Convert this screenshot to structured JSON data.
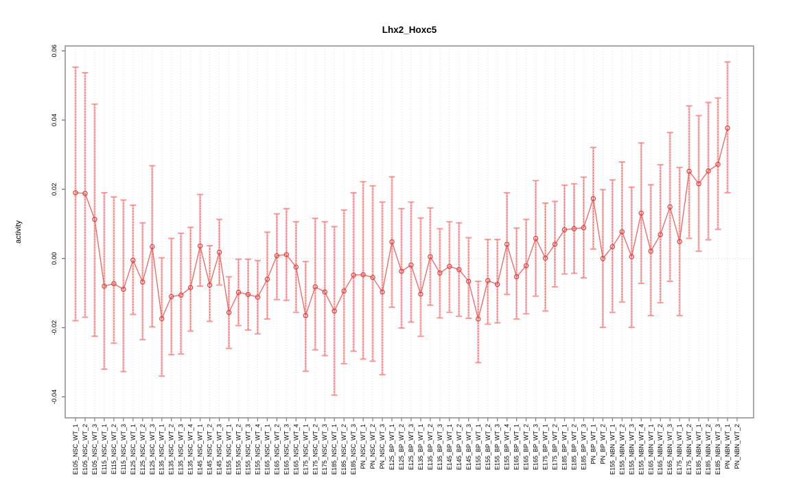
{
  "chart_data": {
    "type": "scatter",
    "subtype": "points-with-error-bars",
    "title": "Lhx2_Hoxc5",
    "xlabel": "",
    "ylabel": "activity",
    "ylim": [
      -0.047,
      0.062
    ],
    "yticks": [
      0.06,
      0.04,
      0.02,
      0.0,
      -0.02,
      -0.04
    ],
    "ytick_labels": [
      "0.06",
      "0.04",
      "0.02",
      "0.00",
      "-0.02",
      "-0.04"
    ],
    "grid": "vertical dotted gridline at every category; dotted horizontal line at y=0",
    "legend": "none",
    "style": {
      "point_color": "#e03c3c",
      "line_color": "#f26060",
      "errorbar_color": "#f78e8e",
      "errorbar_core_color": "#e64545",
      "grid_color": "#dedede",
      "zero_line_color": "#cccccc",
      "box_color": "#8c8c8c",
      "tick_color": "#7a7a7a",
      "text_color": "#000000"
    },
    "series": [
      {
        "name": "activity",
        "points": [
          {
            "label": "E105_NSC_WT_1",
            "value": 0.019,
            "lo": -0.018,
            "hi": 0.0553
          },
          {
            "label": "E105_NSC_WT_2",
            "value": 0.0188,
            "lo": -0.017,
            "hi": 0.0537
          },
          {
            "label": "E105_NSC_WT_3",
            "value": 0.0113,
            "lo": -0.0225,
            "hi": 0.0446
          },
          {
            "label": "E115_NSC_WT_1",
            "value": -0.008,
            "lo": -0.032,
            "hi": 0.019
          },
          {
            "label": "E115_NSC_WT_2",
            "value": -0.0073,
            "lo": -0.0245,
            "hi": 0.0178
          },
          {
            "label": "E115_NSC_WT_3",
            "value": -0.0089,
            "lo": -0.0327,
            "hi": 0.0169
          },
          {
            "label": "E125_NSC_WT_1",
            "value": -0.0005,
            "lo": -0.0162,
            "hi": 0.0154
          },
          {
            "label": "E125_NSC_WT_2",
            "value": -0.0068,
            "lo": -0.0235,
            "hi": 0.0103
          },
          {
            "label": "E125_NSC_WT_3",
            "value": 0.0034,
            "lo": -0.0198,
            "hi": 0.0268
          },
          {
            "label": "E135_NSC_WT_1",
            "value": -0.0174,
            "lo": -0.034,
            "hi": 0.0002
          },
          {
            "label": "E135_NSC_WT_2",
            "value": -0.011,
            "lo": -0.0278,
            "hi": 0.0058
          },
          {
            "label": "E135_NSC_WT_3",
            "value": -0.0106,
            "lo": -0.0276,
            "hi": 0.0073
          },
          {
            "label": "E135_NSC_WT_4",
            "value": -0.0084,
            "lo": -0.021,
            "hi": 0.009
          },
          {
            "label": "E145_NSC_WT_1",
            "value": 0.0036,
            "lo": -0.008,
            "hi": 0.0185
          },
          {
            "label": "E145_NSC_WT_2",
            "value": -0.0077,
            "lo": -0.0182,
            "hi": 0.0037
          },
          {
            "label": "E145_NSC_WT_3",
            "value": 0.0018,
            "lo": -0.0077,
            "hi": 0.0113
          },
          {
            "label": "E155_NSC_WT_1",
            "value": -0.0156,
            "lo": -0.026,
            "hi": -0.0053
          },
          {
            "label": "E155_NSC_WT_2",
            "value": -0.0098,
            "lo": -0.0194,
            "hi": -0.0002
          },
          {
            "label": "E155_NSC_WT_3",
            "value": -0.0104,
            "lo": -0.0207,
            "hi": -0.0002
          },
          {
            "label": "E155_NSC_WT_4",
            "value": -0.0112,
            "lo": -0.0218,
            "hi": -0.0006
          },
          {
            "label": "E165_NSC_WT_1",
            "value": -0.006,
            "lo": -0.0175,
            "hi": 0.0076
          },
          {
            "label": "E165_NSC_WT_2",
            "value": 0.0008,
            "lo": -0.0119,
            "hi": 0.0129
          },
          {
            "label": "E165_NSC_WT_3",
            "value": 0.0011,
            "lo": -0.0121,
            "hi": 0.0144
          },
          {
            "label": "E165_NSC_WT_4",
            "value": -0.0025,
            "lo": -0.0156,
            "hi": 0.0106
          },
          {
            "label": "E175_NSC_WT_1",
            "value": -0.0165,
            "lo": -0.0326,
            "hi": -0.0009
          },
          {
            "label": "E175_NSC_WT_2",
            "value": -0.0082,
            "lo": -0.0264,
            "hi": 0.0116
          },
          {
            "label": "E175_NSC_WT_3",
            "value": -0.0097,
            "lo": -0.0281,
            "hi": 0.0106
          },
          {
            "label": "E185_NSC_WT_1",
            "value": -0.0152,
            "lo": -0.0395,
            "hi": 0.0092
          },
          {
            "label": "E185_NSC_WT_2",
            "value": -0.0094,
            "lo": -0.0304,
            "hi": 0.014
          },
          {
            "label": "E185_NSC_WT_3",
            "value": -0.0048,
            "lo": -0.0268,
            "hi": 0.019
          },
          {
            "label": "PN_NSC_WT_1",
            "value": -0.0047,
            "lo": -0.0291,
            "hi": 0.0222
          },
          {
            "label": "PN_NSC_WT_2",
            "value": -0.0055,
            "lo": -0.0297,
            "hi": 0.021
          },
          {
            "label": "PN_NSC_WT_3",
            "value": -0.0097,
            "lo": -0.0336,
            "hi": 0.0163
          },
          {
            "label": "E125_BP_WT_1",
            "value": 0.0048,
            "lo": -0.0141,
            "hi": 0.0236
          },
          {
            "label": "E125_BP_WT_2",
            "value": -0.0037,
            "lo": -0.0201,
            "hi": 0.0144
          },
          {
            "label": "E125_BP_WT_3",
            "value": -0.0019,
            "lo": -0.0184,
            "hi": 0.0163
          },
          {
            "label": "E135_BP_WT_1",
            "value": -0.0103,
            "lo": -0.0225,
            "hi": 0.0117
          },
          {
            "label": "E135_BP_WT_2",
            "value": 0.0005,
            "lo": -0.0135,
            "hi": 0.0146
          },
          {
            "label": "E135_BP_WT_3",
            "value": -0.0042,
            "lo": -0.0172,
            "hi": 0.0086
          },
          {
            "label": "E145_BP_WT_1",
            "value": -0.0023,
            "lo": -0.0156,
            "hi": 0.0106
          },
          {
            "label": "E145_BP_WT_2",
            "value": -0.0032,
            "lo": -0.0167,
            "hi": 0.0103
          },
          {
            "label": "E145_BP_WT_3",
            "value": -0.0066,
            "lo": -0.0173,
            "hi": 0.006
          },
          {
            "label": "E155_BP_WT_1",
            "value": -0.0175,
            "lo": -0.0301,
            "hi": -0.0066
          },
          {
            "label": "E155_BP_WT_2",
            "value": -0.0064,
            "lo": -0.019,
            "hi": 0.0055
          },
          {
            "label": "E155_BP_WT_3",
            "value": -0.0075,
            "lo": -0.0186,
            "hi": 0.0055
          },
          {
            "label": "E155_BP_WT_4",
            "value": 0.0041,
            "lo": -0.0104,
            "hi": 0.019
          },
          {
            "label": "E165_BP_WT_1",
            "value": -0.0053,
            "lo": -0.0175,
            "hi": 0.0088
          },
          {
            "label": "E165_BP_WT_2",
            "value": -0.0021,
            "lo": -0.016,
            "hi": 0.0113
          },
          {
            "label": "E165_BP_WT_3",
            "value": 0.0058,
            "lo": -0.0109,
            "hi": 0.0225
          },
          {
            "label": "E175_BP_WT_1",
            "value": 0.0001,
            "lo": -0.0152,
            "hi": 0.016
          },
          {
            "label": "E175_BP_WT_2",
            "value": 0.0041,
            "lo": -0.0082,
            "hi": 0.0165
          },
          {
            "label": "E185_BP_WT_1",
            "value": 0.0083,
            "lo": -0.0045,
            "hi": 0.0212
          },
          {
            "label": "E185_BP_WT_2",
            "value": 0.0086,
            "lo": -0.0043,
            "hi": 0.0216
          },
          {
            "label": "E185_BP_WT_3",
            "value": 0.0089,
            "lo": -0.0056,
            "hi": 0.0235
          },
          {
            "label": "PN_BP_WT_1",
            "value": 0.0173,
            "lo": 0.0027,
            "hi": 0.0321
          },
          {
            "label": "PN_BP_WT_2",
            "value": 0.0,
            "lo": -0.0199,
            "hi": 0.0199
          },
          {
            "label": "E155_NBN_WT_1",
            "value": 0.0034,
            "lo": -0.0156,
            "hi": 0.0227
          },
          {
            "label": "E155_NBN_WT_2",
            "value": 0.0077,
            "lo": -0.0126,
            "hi": 0.0279
          },
          {
            "label": "E155_NBN_WT_3",
            "value": 0.0005,
            "lo": -0.0199,
            "hi": 0.0206
          },
          {
            "label": "E155_NBN_WT_4",
            "value": 0.0131,
            "lo": -0.0072,
            "hi": 0.0334
          },
          {
            "label": "E165_NBN_WT_1",
            "value": 0.0021,
            "lo": -0.0165,
            "hi": 0.0213
          },
          {
            "label": "E165_NBN_WT_2",
            "value": 0.0069,
            "lo": -0.0128,
            "hi": 0.0271
          },
          {
            "label": "E165_NBN_WT_3",
            "value": 0.0149,
            "lo": -0.0066,
            "hi": 0.0364
          },
          {
            "label": "E175_NBN_WT_1",
            "value": 0.0049,
            "lo": -0.0165,
            "hi": 0.0263
          },
          {
            "label": "E175_NBN_WT_2",
            "value": 0.0252,
            "lo": 0.0058,
            "hi": 0.0441
          },
          {
            "label": "E185_NBN_WT_1",
            "value": 0.0216,
            "lo": 0.0021,
            "hi": 0.0413
          },
          {
            "label": "E185_NBN_WT_2",
            "value": 0.0253,
            "lo": 0.0054,
            "hi": 0.0451
          },
          {
            "label": "E185_NBN_WT_3",
            "value": 0.0272,
            "lo": 0.0084,
            "hi": 0.0464
          },
          {
            "label": "PN_NBN_WT_1",
            "value": 0.0377,
            "lo": 0.019,
            "hi": 0.0568
          },
          {
            "label": "PN_NBN_WT_2",
            "value": null,
            "lo": null,
            "hi": null
          }
        ]
      }
    ]
  }
}
